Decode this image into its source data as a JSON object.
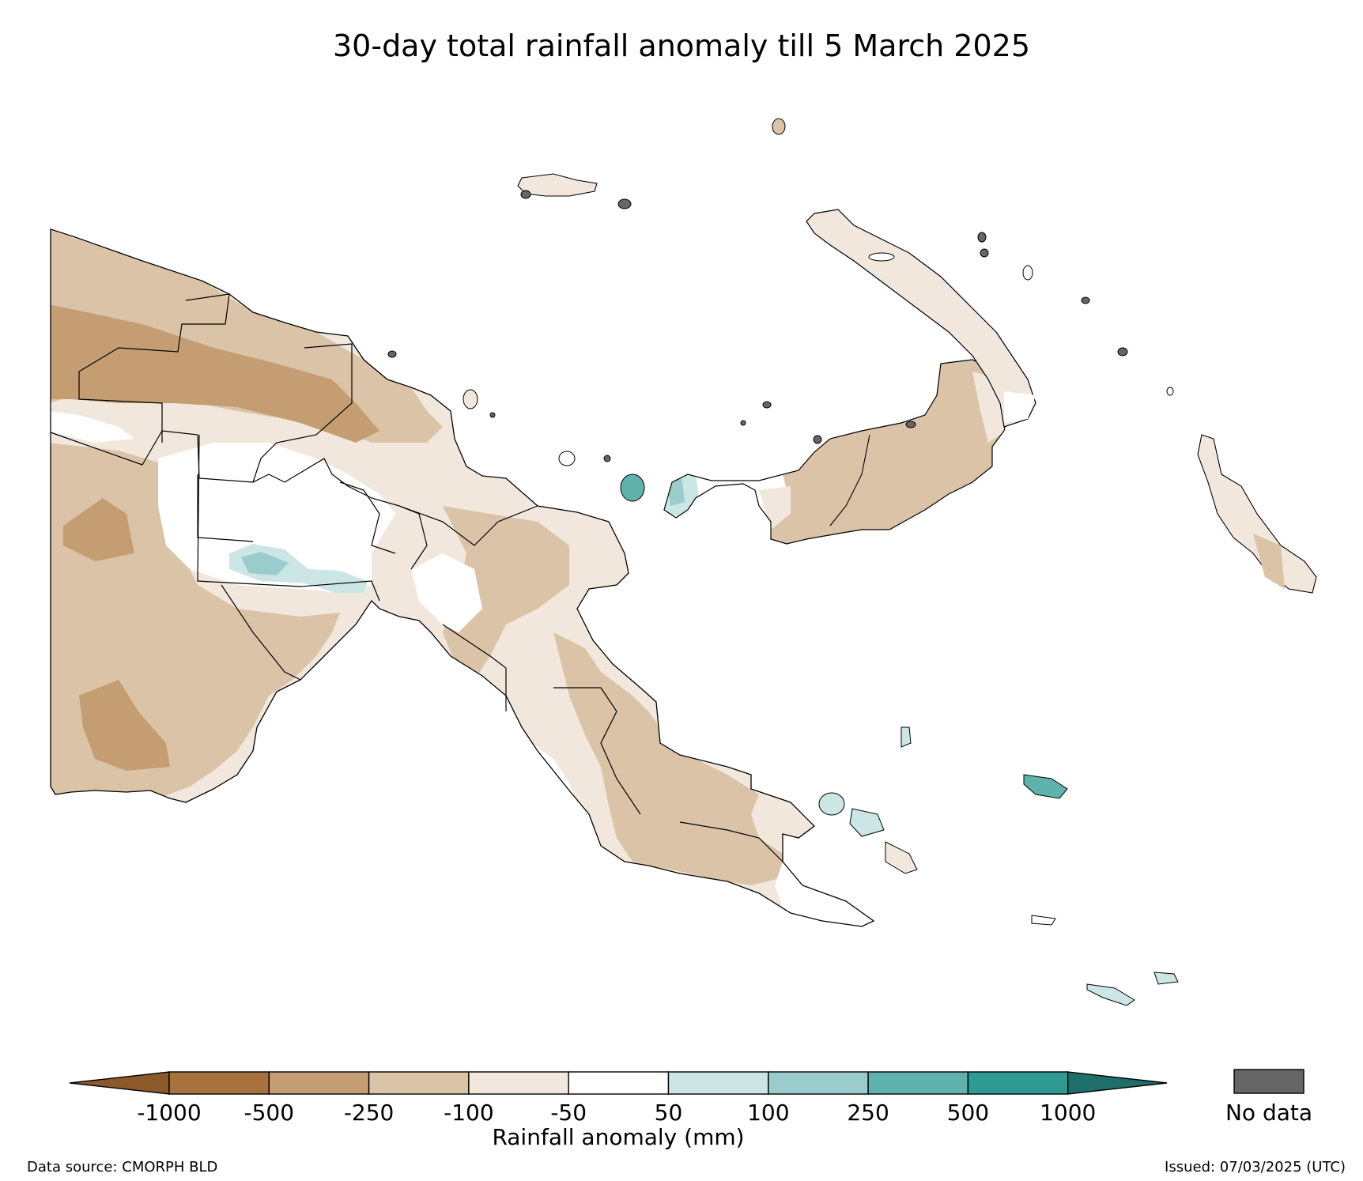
{
  "title": "30-day total rainfall anomaly till 5 March 2025",
  "legend": {
    "label": "Rainfall anomaly (mm)",
    "ticks": [
      "-1000",
      "-500",
      "-250",
      "-100",
      "-50",
      "50",
      "100",
      "250",
      "500",
      "1000"
    ],
    "colors": {
      "lt_-1000": "#8c5a2a",
      "-1000_-500": "#a8723f",
      "-500_-250": "#c49e72",
      "-250_-100": "#dbc3a7",
      "-100_-50": "#f1e7dd",
      "-50_50": "#ffffff",
      "50_100": "#cce6e5",
      "100_250": "#99cccb",
      "250_500": "#60b2ad",
      "500_1000": "#2e9a93",
      "gt_1000": "#1e6f6a"
    },
    "nodata_label": "No data",
    "nodata_color": "#666666"
  },
  "footer": {
    "source": "Data source: CMORPH BLD",
    "issued": "Issued: 07/03/2025 (UTC)"
  }
}
